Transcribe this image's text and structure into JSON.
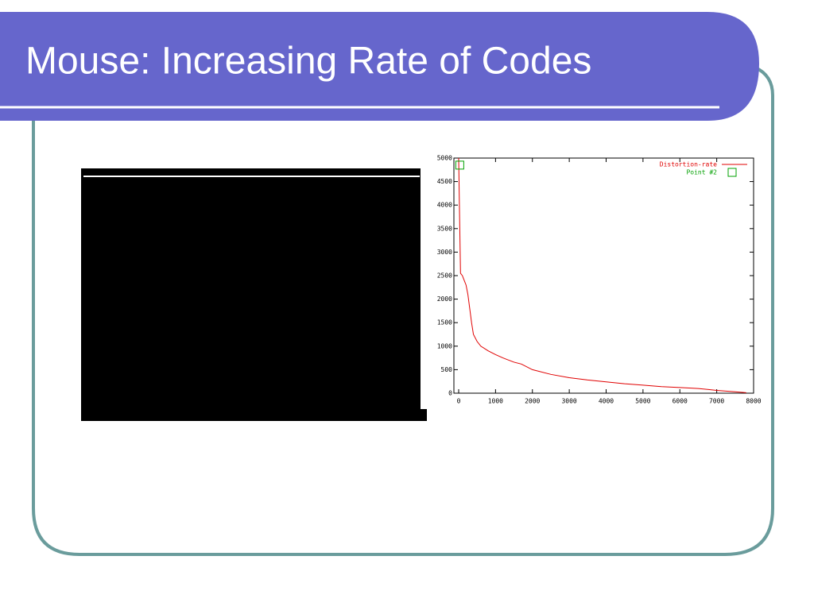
{
  "title": "Mouse: Increasing Rate of Codes",
  "chart_data": {
    "type": "line",
    "xlim": [
      0,
      8000
    ],
    "ylim": [
      0,
      5000
    ],
    "xticks": [
      0,
      1000,
      2000,
      3000,
      4000,
      5000,
      6000,
      7000,
      8000
    ],
    "yticks": [
      0,
      500,
      1000,
      1500,
      2000,
      2500,
      3000,
      3500,
      4000,
      4500,
      5000
    ],
    "legend": "upper right",
    "series": [
      {
        "name": "Distortion-rate",
        "color": "#e00000",
        "style": "line",
        "x": [
          0,
          20,
          50,
          100,
          150,
          200,
          250,
          300,
          350,
          400,
          500,
          600,
          800,
          1000,
          1200,
          1500,
          1700,
          2000,
          2500,
          3000,
          3500,
          4000,
          4500,
          5000,
          5500,
          6000,
          6500,
          7000,
          7500,
          7800
        ],
        "values": [
          5000,
          4000,
          2550,
          2500,
          2400,
          2300,
          2100,
          1800,
          1500,
          1250,
          1100,
          1000,
          900,
          820,
          750,
          660,
          620,
          500,
          400,
          330,
          280,
          240,
          200,
          170,
          140,
          120,
          100,
          60,
          30,
          10
        ]
      },
      {
        "name": "Point #2",
        "color": "#00a000",
        "style": "points",
        "x": [
          30
        ],
        "values": [
          4850
        ]
      }
    ]
  }
}
